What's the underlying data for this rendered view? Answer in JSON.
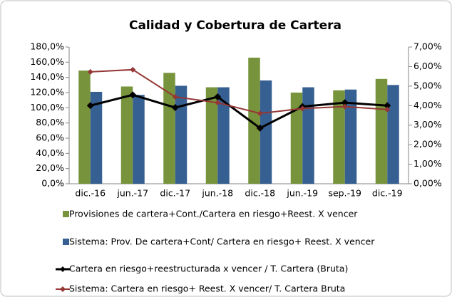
{
  "chart_data": {
    "type": "bar_line",
    "title": "Calidad y Cobertura de Cartera",
    "categories": [
      "dic.-16",
      "jun.-17",
      "dic.-17",
      "jun.-18",
      "dic.-18",
      "jun.-19",
      "sep.-19",
      "dic.-19"
    ],
    "series": [
      {
        "name": "Provisiones de cartera+Cont./Cartera en riesgo+Reest. X vencer",
        "type": "bar",
        "color": "#77933c",
        "values": [
          149,
          128,
          146,
          127,
          166,
          120,
          123,
          138
        ]
      },
      {
        "name": "Sistema: Prov. De cartera+Cont/ Cartera en riesgo+ Reest. X vencer",
        "type": "bar",
        "color": "#376092",
        "values": [
          121,
          117,
          129,
          127,
          136,
          127,
          124,
          130
        ]
      },
      {
        "name": "Cartera en riesgo+reestructurada x vencer / T. Cartera (Bruta)",
        "type": "line",
        "axis": "y2",
        "color": "#000000",
        "values": [
          4.0,
          4.55,
          3.9,
          4.45,
          2.85,
          3.95,
          4.15,
          4.0
        ]
      },
      {
        "name": "Sistema: Cartera en riesgo+ Reest. X vencer/ T. Cartera Bruta",
        "type": "line",
        "axis": "y2",
        "color": "#953735",
        "values": [
          5.73,
          5.84,
          4.45,
          4.15,
          3.6,
          3.85,
          3.95,
          3.8
        ]
      }
    ],
    "ylim": [
      0,
      180
    ],
    "yticks": [
      {
        "value": 0,
        "label": "0,0%"
      },
      {
        "value": 20,
        "label": "20,0%"
      },
      {
        "value": 40,
        "label": "40,0%"
      },
      {
        "value": 60,
        "label": "60,0%"
      },
      {
        "value": 80,
        "label": "80,0%"
      },
      {
        "value": 100,
        "label": "100,0%"
      },
      {
        "value": 120,
        "label": "120,0%"
      },
      {
        "value": 140,
        "label": "140,0%"
      },
      {
        "value": 160,
        "label": "160,0%"
      },
      {
        "value": 180,
        "label": "180,0%"
      }
    ],
    "y2lim": [
      0,
      7
    ],
    "y2ticks": [
      {
        "value": 0,
        "label": "0,00%"
      },
      {
        "value": 1,
        "label": "1,00%"
      },
      {
        "value": 2,
        "label": "2,00%"
      },
      {
        "value": 3,
        "label": "3,00%"
      },
      {
        "value": 4,
        "label": "4,00%"
      },
      {
        "value": 5,
        "label": "5,00%"
      },
      {
        "value": 6,
        "label": "6,00%"
      },
      {
        "value": 7,
        "label": "7,00%"
      }
    ],
    "grid": false,
    "legend": "bottom"
  }
}
